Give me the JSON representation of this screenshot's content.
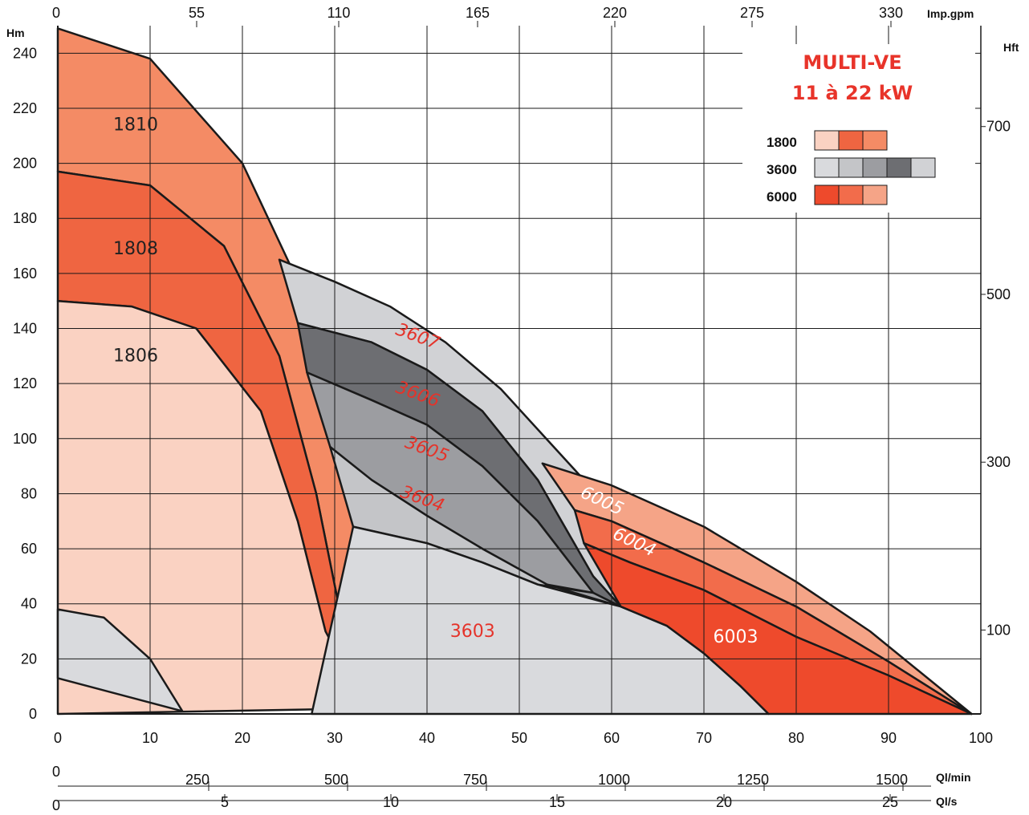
{
  "chart_data": {
    "type": "area",
    "title": "MULTI-VE",
    "subtitle": "11 à 22 kW",
    "y_left": {
      "unit": "Hm",
      "ticks": [
        0,
        20,
        40,
        60,
        80,
        100,
        120,
        140,
        160,
        180,
        200,
        220,
        240
      ],
      "range": [
        0,
        250
      ]
    },
    "y_right": {
      "unit": "Hft",
      "ticks": [
        {
          "label": "100",
          "value": 30.48
        },
        {
          "label": "300",
          "value": 91.44
        },
        {
          "label": "500",
          "value": 152.4
        },
        {
          "label": "700",
          "value": 213.36
        }
      ]
    },
    "x_main": {
      "unit": "",
      "ticks": [
        0,
        10,
        20,
        30,
        40,
        50,
        60,
        70,
        80,
        90,
        100
      ],
      "range": [
        0,
        100
      ]
    },
    "x_top": {
      "unit": "Imp.gpm",
      "ticks": [
        "0",
        "55",
        "110",
        "165",
        "220",
        "275",
        "330"
      ]
    },
    "x_lmin": {
      "unit": "Ql/min",
      "ticks": [
        "0",
        "250",
        "500",
        "750",
        "1000",
        "1250",
        "1500"
      ]
    },
    "x_ls": {
      "unit": "Ql/s",
      "ticks": [
        "0",
        "5",
        "10",
        "15",
        "20",
        "25"
      ]
    },
    "grid": true,
    "legend": {
      "position": "top-right",
      "rows": [
        {
          "label": "1800",
          "colors": [
            "#fad2c2",
            "#ef6541",
            "#f48b65"
          ]
        },
        {
          "label": "3600",
          "colors": [
            "#d9dadd",
            "#c4c5c8",
            "#9c9da1",
            "#6d6e72",
            "#d1d2d5"
          ]
        },
        {
          "label": "6000",
          "colors": [
            "#ee4a2c",
            "#f26c4b",
            "#f5a487"
          ]
        }
      ]
    },
    "series": [
      {
        "name": "1810",
        "color": "#f48b65",
        "label_color": "#222222",
        "label_at": [
          6,
          212
        ],
        "label_rot": 0,
        "outline": [
          [
            0,
            249
          ],
          [
            10,
            238
          ],
          [
            20,
            200
          ],
          [
            27,
            150
          ],
          [
            32,
            90
          ],
          [
            35,
            30
          ],
          [
            35,
            2
          ],
          [
            33.5,
            2
          ],
          [
            31,
            30
          ],
          [
            28,
            80
          ],
          [
            24,
            130
          ],
          [
            18,
            170
          ],
          [
            10,
            192
          ],
          [
            0,
            197
          ]
        ]
      },
      {
        "name": "1808",
        "color": "#ef6541",
        "label_color": "#222222",
        "label_at": [
          6,
          167
        ],
        "label_rot": 0,
        "outline": [
          [
            0,
            197
          ],
          [
            10,
            192
          ],
          [
            18,
            170
          ],
          [
            24,
            130
          ],
          [
            28,
            80
          ],
          [
            31,
            30
          ],
          [
            33.5,
            2
          ],
          [
            31,
            2
          ],
          [
            29,
            30
          ],
          [
            26,
            70
          ],
          [
            22,
            110
          ],
          [
            15,
            140
          ],
          [
            8,
            148
          ],
          [
            0,
            150
          ]
        ]
      },
      {
        "name": "1806",
        "color": "#fad2c2",
        "label_color": "#222222",
        "label_at": [
          6,
          128
        ],
        "label_rot": 0,
        "outline": [
          [
            0,
            150
          ],
          [
            8,
            148
          ],
          [
            15,
            140
          ],
          [
            22,
            110
          ],
          [
            26,
            70
          ],
          [
            29,
            30
          ],
          [
            33.5,
            2
          ],
          [
            0,
            0
          ]
        ]
      },
      {
        "name": "3607",
        "color": "#d1d2d5",
        "label_color": "#e5332a",
        "label_at": [
          36.5,
          138
        ],
        "label_rot": 20,
        "outline": [
          [
            24,
            165
          ],
          [
            30,
            157
          ],
          [
            36,
            148
          ],
          [
            42,
            135
          ],
          [
            48,
            118
          ],
          [
            54,
            96
          ],
          [
            60,
            74
          ],
          [
            62,
            69
          ],
          [
            61,
            39
          ],
          [
            58,
            50
          ],
          [
            52,
            85
          ],
          [
            46,
            110
          ],
          [
            40,
            125
          ],
          [
            34,
            135
          ],
          [
            26,
            142
          ]
        ]
      },
      {
        "name": "3606",
        "color": "#6d6e72",
        "label_color": "#e5332a",
        "label_at": [
          36.5,
          117
        ],
        "label_rot": 20,
        "outline": [
          [
            26,
            142
          ],
          [
            34,
            135
          ],
          [
            40,
            125
          ],
          [
            46,
            110
          ],
          [
            52,
            85
          ],
          [
            58,
            50
          ],
          [
            61,
            39
          ],
          [
            58,
            44
          ],
          [
            52,
            70
          ],
          [
            46,
            90
          ],
          [
            40,
            105
          ],
          [
            34,
            114
          ],
          [
            27,
            124
          ]
        ]
      },
      {
        "name": "3605",
        "color": "#9c9da1",
        "label_color": "#e5332a",
        "label_at": [
          37.5,
          97
        ],
        "label_rot": 20,
        "outline": [
          [
            27,
            124
          ],
          [
            34,
            114
          ],
          [
            40,
            105
          ],
          [
            46,
            90
          ],
          [
            52,
            70
          ],
          [
            58,
            44
          ],
          [
            61,
            39
          ],
          [
            53,
            47
          ],
          [
            46,
            60
          ],
          [
            40,
            72
          ],
          [
            34,
            85
          ],
          [
            29.5,
            97
          ]
        ]
      },
      {
        "name": "3604",
        "color": "#c4c5c8",
        "label_color": "#e5332a",
        "label_at": [
          37,
          79
        ],
        "label_rot": 20,
        "outline": [
          [
            29.5,
            97
          ],
          [
            34,
            85
          ],
          [
            40,
            72
          ],
          [
            46,
            60
          ],
          [
            53,
            47
          ],
          [
            58,
            44
          ],
          [
            52,
            47
          ],
          [
            46,
            55
          ],
          [
            40,
            62
          ],
          [
            32,
            68
          ]
        ]
      },
      {
        "name": "3603",
        "color": "#d9dadd",
        "label_color": "#e5332a",
        "label_at": [
          42.5,
          28
        ],
        "label_rot": 0,
        "outline": [
          [
            32,
            68
          ],
          [
            40,
            62
          ],
          [
            46,
            55
          ],
          [
            52,
            47
          ],
          [
            61,
            39
          ],
          [
            66,
            32
          ],
          [
            70,
            22
          ],
          [
            74,
            10
          ],
          [
            77,
            0
          ],
          [
            27.5,
            0
          ]
        ]
      },
      {
        "name": "1800 base",
        "color": "#d9dadd",
        "label_color": "",
        "label_at": [
          0,
          0
        ],
        "label_rot": 0,
        "outline": [
          [
            0,
            38
          ],
          [
            5,
            35
          ],
          [
            10,
            20
          ],
          [
            13.5,
            1
          ],
          [
            0,
            13
          ]
        ]
      },
      {
        "name": "6005",
        "color": "#f5a487",
        "label_color": "#ffffff",
        "label_at": [
          56.5,
          79
        ],
        "label_rot": 25,
        "outline": [
          [
            52.5,
            91
          ],
          [
            60,
            83
          ],
          [
            70,
            68
          ],
          [
            80,
            48
          ],
          [
            88,
            30
          ],
          [
            99,
            0
          ],
          [
            90,
            19
          ],
          [
            80,
            39
          ],
          [
            70,
            55
          ],
          [
            60,
            70
          ],
          [
            56,
            74
          ]
        ]
      },
      {
        "name": "6004",
        "color": "#f26c4b",
        "label_color": "#ffffff",
        "label_at": [
          60,
          64
        ],
        "label_rot": 25,
        "outline": [
          [
            56,
            74
          ],
          [
            60,
            70
          ],
          [
            70,
            55
          ],
          [
            80,
            39
          ],
          [
            90,
            19
          ],
          [
            99,
            0
          ],
          [
            90,
            14
          ],
          [
            80,
            28
          ],
          [
            70,
            45
          ],
          [
            62,
            55
          ],
          [
            57,
            62
          ]
        ]
      },
      {
        "name": "6003",
        "color": "#ee4a2c",
        "label_color": "#ffffff",
        "label_at": [
          71,
          26
        ],
        "label_rot": 0,
        "outline": [
          [
            57,
            62
          ],
          [
            62,
            55
          ],
          [
            70,
            45
          ],
          [
            80,
            28
          ],
          [
            90,
            14
          ],
          [
            99,
            0
          ],
          [
            77,
            0
          ],
          [
            74,
            10
          ],
          [
            70,
            22
          ],
          [
            66,
            32
          ],
          [
            61,
            39
          ]
        ]
      }
    ]
  }
}
